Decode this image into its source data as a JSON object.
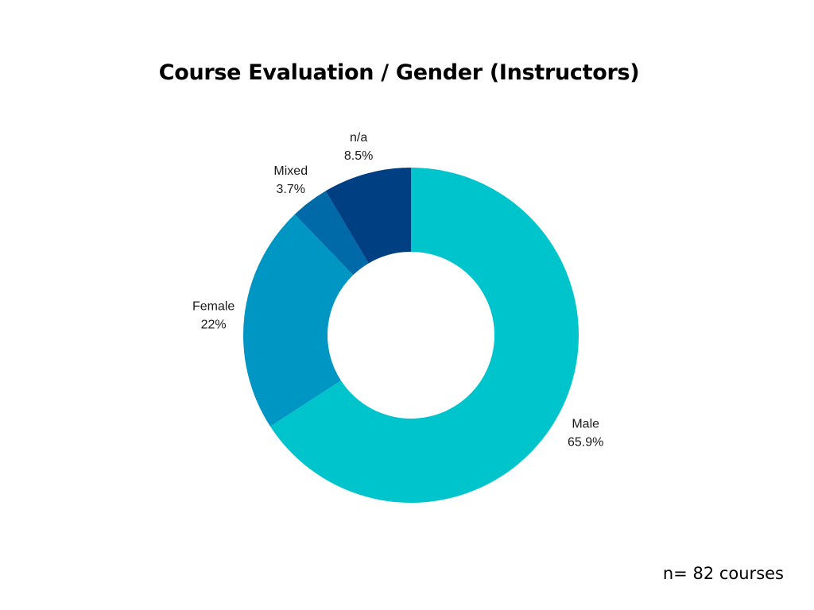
{
  "colors": {
    "background": "#ffffff",
    "slices": [
      "#00c4cc",
      "#0096c4",
      "#0069a8",
      "#003f82"
    ]
  },
  "chart_data": {
    "type": "pie",
    "title": "Course Evaluation / Gender (Instructors)",
    "donut": true,
    "start_at": "top",
    "direction": "clockwise",
    "slices": [
      {
        "label": "Male",
        "value": 65.9,
        "value_label": "65.9%"
      },
      {
        "label": "Female",
        "value": 22,
        "value_label": "22%"
      },
      {
        "label": "Mixed",
        "value": 3.7,
        "value_label": "3.7%"
      },
      {
        "label": "n/a",
        "value": 8.5,
        "value_label": "8.5%"
      }
    ]
  },
  "footnote": "n= 82 courses"
}
